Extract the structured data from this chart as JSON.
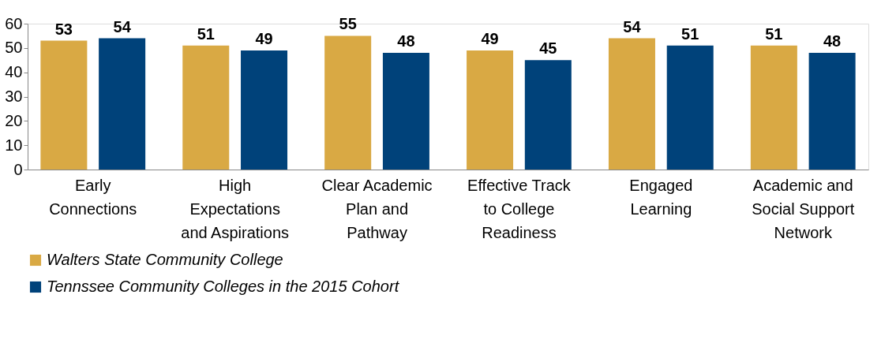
{
  "chart_data": {
    "type": "bar",
    "categories": [
      "Early Connections",
      "High Expectations and Aspirations",
      "Clear Academic Plan and Pathway",
      "Effective Track to College Readiness",
      "Engaged Learning",
      "Academic and Social Support Network"
    ],
    "series": [
      {
        "name": "Walters State Community College",
        "color": "#d9a944",
        "values": [
          53,
          51,
          55,
          49,
          54,
          51
        ]
      },
      {
        "name": "Tennssee Community Colleges in the 2015 Cohort",
        "color": "#00427a",
        "values": [
          54,
          49,
          48,
          45,
          51,
          48
        ]
      }
    ],
    "ylim": [
      0,
      60
    ],
    "yticks": [
      0,
      10,
      20,
      30,
      40,
      50,
      60
    ],
    "grid": false,
    "legend": "bottom",
    "data_labels": true
  }
}
